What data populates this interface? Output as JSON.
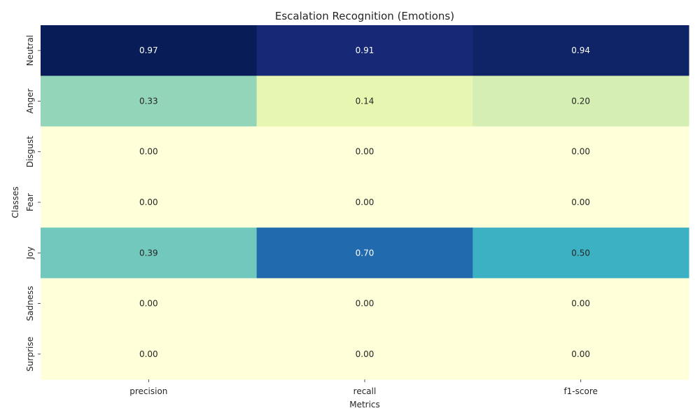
{
  "chart_data": {
    "type": "heatmap",
    "title": "Escalation Recognition (Emotions)",
    "xlabel": "Metrics",
    "ylabel": "Classes",
    "columns": [
      "precision",
      "recall",
      "f1-score"
    ],
    "rows": [
      "Neutral",
      "Anger",
      "Disgust",
      "Fear",
      "Joy",
      "Sadness",
      "Surprise"
    ],
    "values": [
      [
        0.97,
        0.91,
        0.94
      ],
      [
        0.33,
        0.14,
        0.2
      ],
      [
        0.0,
        0.0,
        0.0
      ],
      [
        0.0,
        0.0,
        0.0
      ],
      [
        0.39,
        0.7,
        0.5
      ],
      [
        0.0,
        0.0,
        0.0
      ],
      [
        0.0,
        0.0,
        0.0
      ]
    ],
    "value_format": "0.00",
    "colormap": "YlGnBu",
    "color_range": [
      0.0,
      0.97
    ],
    "colorbar": false,
    "grid": false
  }
}
